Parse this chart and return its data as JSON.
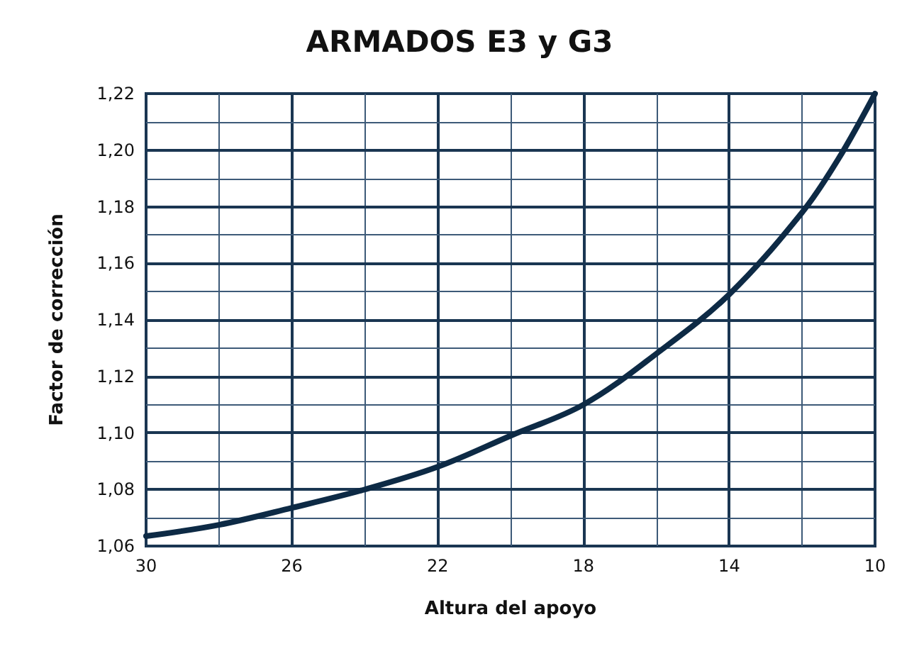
{
  "chart_data": {
    "type": "line",
    "title": "ARMADOS E3 y G3",
    "xlabel": "Altura del apoyo",
    "ylabel": "Factor de corrección",
    "x": [
      30,
      28,
      26,
      24,
      22,
      20,
      18,
      16,
      14,
      12,
      11,
      10
    ],
    "series": [
      {
        "color": "#0d2a45",
        "values": [
          1.0635,
          1.0675,
          1.0735,
          1.08,
          1.088,
          1.099,
          1.11,
          1.128,
          1.149,
          1.178,
          1.197,
          1.22
        ]
      }
    ],
    "xlim": [
      30,
      10
    ],
    "xticks": [
      30,
      {
        "value": 28,
        "label": null
      },
      26,
      {
        "value": 24,
        "label": null
      },
      22,
      {
        "value": 20,
        "label": null
      },
      18,
      {
        "value": 16,
        "label": null
      },
      14,
      {
        "value": 12,
        "label": null
      },
      10
    ],
    "ylim": [
      1.06,
      1.22
    ],
    "yticks": [
      {
        "value": 1.06,
        "label": "1,06"
      },
      {
        "value": 1.07,
        "label": null
      },
      {
        "value": 1.08,
        "label": "1,08"
      },
      {
        "value": 1.09,
        "label": null
      },
      {
        "value": 1.1,
        "label": "1,10"
      },
      {
        "value": 1.11,
        "label": null
      },
      {
        "value": 1.12,
        "label": "1,12"
      },
      {
        "value": 1.13,
        "label": null
      },
      {
        "value": 1.14,
        "label": "1,14"
      },
      {
        "value": 1.15,
        "label": null
      },
      {
        "value": 1.16,
        "label": "1,16"
      },
      {
        "value": 1.17,
        "label": null
      },
      {
        "value": 1.18,
        "label": "1,18"
      },
      {
        "value": 1.19,
        "label": null
      },
      {
        "value": 1.2,
        "label": "1,20"
      },
      {
        "value": 1.21,
        "label": null
      },
      {
        "value": 1.22,
        "label": "1,22"
      }
    ],
    "grid": true,
    "marker": "none",
    "line_style": "solid"
  }
}
